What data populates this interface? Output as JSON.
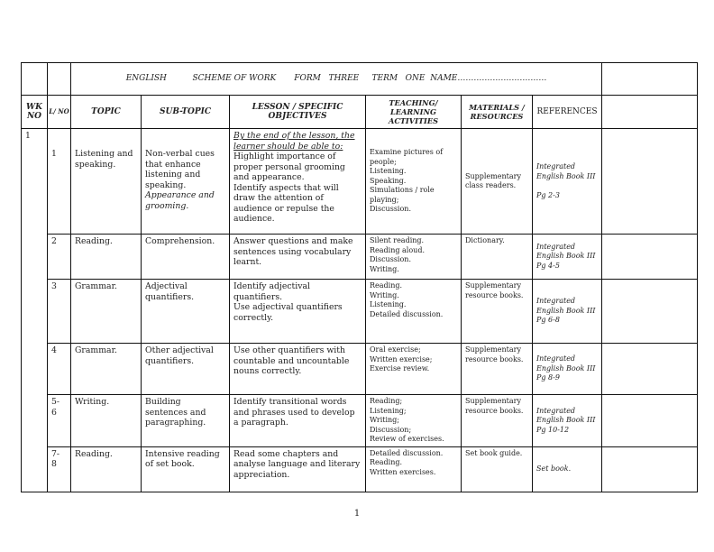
{
  "title": "ENGLISH          SCHEME OF WORK       FORM   THREE     TERM   ONE  NAME……………………………",
  "headers": {
    "wk_no": "WK NO",
    "l_no": "L/ NO",
    "topic": "TOPIC",
    "sub_topic": "SUB-TOPIC",
    "objectives": "LESSON / SPECIFIC OBJECTIVES",
    "activities": "TEACHING/ LEARNING ACTIVITIES",
    "materials": "MATERIALS / RESOURCES",
    "references": "REFERENCES"
  },
  "week": "1",
  "rows": [
    {
      "l_no": "1",
      "topic": "Listening and speaking.",
      "sub_topic": "Non-verbal cues that enhance listening and speaking.",
      "sub_topic_italic": "Appearance and grooming.",
      "objectives_intro": "By the end of the lesson, the learner should be able to:",
      "objectives": "Highlight importance of proper personal grooming and appearance.\nIdentify aspects that will draw the attention of audience or repulse the audience.",
      "activities": "Examine pictures of people;\nListening.\nSpeaking.\nSimulations / role playing;\nDiscussion.",
      "materials": "Supplementary class readers.",
      "references": "Integrated English Book III\n\nPg 2-3"
    },
    {
      "l_no": "2",
      "topic": "Reading.",
      "sub_topic": "Comprehension.",
      "objectives": "Answer questions and make sentences using vocabulary learnt.",
      "activities": "Silent reading.\nReading aloud.\nDiscussion.\nWriting.",
      "materials": "Dictionary.",
      "references": "Integrated English Book III Pg 4-5"
    },
    {
      "l_no": "3",
      "topic": "Grammar.",
      "sub_topic": "Adjectival quantifiers.",
      "objectives": "Identify adjectival quantifiers.\nUse adjectival quantifiers correctly.",
      "activities": "Reading.\nWriting.\nListening.\nDetailed discussion.",
      "materials": "Supplementary resource books.",
      "references": "Integrated English Book III Pg 6-8"
    },
    {
      "l_no": "4",
      "topic": "Grammar.",
      "sub_topic": "Other adjectival quantifiers.",
      "objectives": "Use other quantifiers with countable and uncountable nouns correctly.",
      "activities": "Oral exercise;\nWritten exercise;\nExercise review.",
      "materials": "Supplementary resource books.",
      "references": "Integrated English Book III Pg 8-9"
    },
    {
      "l_no": "5-\n6",
      "topic": "Writing.",
      "sub_topic": "Building sentences and paragraphing.",
      "objectives": "Identify transitional words and phrases used to develop a paragraph.",
      "activities": "Reading;\nListening;\nWriting;\nDiscussion;\nReview of exercises.",
      "materials": "Supplementary resource books.",
      "references": "Integrated English Book III Pg 10-12"
    },
    {
      "l_no": "7-\n8",
      "topic": "Reading.",
      "sub_topic": "Intensive reading of set book.",
      "objectives": "Read some chapters and analyse language and literary appreciation.",
      "activities": "Detailed discussion.\nReading.\nWritten exercises.",
      "materials": "Set book guide.",
      "references": "Set book."
    }
  ],
  "page_number": "1"
}
